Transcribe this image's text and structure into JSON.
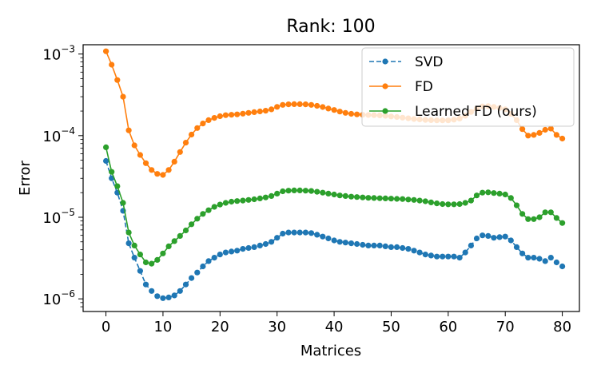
{
  "chart_data": {
    "type": "line",
    "title": "Rank: 100",
    "xlabel": "Matrices",
    "ylabel": "Error",
    "yscale": "log",
    "xlim": [
      -4,
      83
    ],
    "ylim": [
      7e-07,
      0.0013
    ],
    "xticks": [
      0,
      10,
      20,
      30,
      40,
      50,
      60,
      70,
      80
    ],
    "yticks": [
      {
        "value": 1e-06,
        "base": "10",
        "exp": "−6"
      },
      {
        "value": 1e-05,
        "base": "10",
        "exp": "−5"
      },
      {
        "value": 0.0001,
        "base": "10",
        "exp": "−4"
      },
      {
        "value": 0.001,
        "base": "10",
        "exp": "−3"
      }
    ],
    "legend_position": "top-right",
    "x": [
      0,
      1,
      2,
      3,
      4,
      5,
      6,
      7,
      8,
      9,
      10,
      11,
      12,
      13,
      14,
      15,
      16,
      17,
      18,
      19,
      20,
      21,
      22,
      23,
      24,
      25,
      26,
      27,
      28,
      29,
      30,
      31,
      32,
      33,
      34,
      35,
      36,
      37,
      38,
      39,
      40,
      41,
      42,
      43,
      44,
      45,
      46,
      47,
      48,
      49,
      50,
      51,
      52,
      53,
      54,
      55,
      56,
      57,
      58,
      59,
      60,
      61,
      62,
      63,
      64,
      65,
      66,
      67,
      68,
      69,
      70,
      71,
      72,
      73,
      74,
      75,
      76,
      77,
      78,
      79,
      80
    ],
    "series": [
      {
        "name": "SVD",
        "color": "#1f77b4",
        "linestyle": "dashed",
        "values": [
          4.9e-05,
          3e-05,
          2e-05,
          1.2e-05,
          4.8e-06,
          3.2e-06,
          2.2e-06,
          1.5e-06,
          1.25e-06,
          1.08e-06,
          1.02e-06,
          1.04e-06,
          1.1e-06,
          1.25e-06,
          1.5e-06,
          1.8e-06,
          2.1e-06,
          2.5e-06,
          2.9e-06,
          3.2e-06,
          3.5e-06,
          3.7e-06,
          3.8e-06,
          3.9e-06,
          4.1e-06,
          4.2e-06,
          4.3e-06,
          4.5e-06,
          4.7e-06,
          5e-06,
          5.6e-06,
          6.3e-06,
          6.5e-06,
          6.5e-06,
          6.5e-06,
          6.5e-06,
          6.4e-06,
          6.1e-06,
          5.8e-06,
          5.5e-06,
          5.2e-06,
          5e-06,
          4.9e-06,
          4.8e-06,
          4.7e-06,
          4.6e-06,
          4.5e-06,
          4.5e-06,
          4.5e-06,
          4.4e-06,
          4.3e-06,
          4.3e-06,
          4.2e-06,
          4.1e-06,
          3.9e-06,
          3.7e-06,
          3.5e-06,
          3.4e-06,
          3.3e-06,
          3.3e-06,
          3.3e-06,
          3.3e-06,
          3.2e-06,
          3.7e-06,
          4.5e-06,
          5.5e-06,
          6e-06,
          5.9e-06,
          5.6e-06,
          5.7e-06,
          5.8e-06,
          5.2e-06,
          4.3e-06,
          3.6e-06,
          3.2e-06,
          3.2e-06,
          3.1e-06,
          2.9e-06,
          3.2e-06,
          2.8e-06,
          2.5e-06
        ]
      },
      {
        "name": "FD",
        "color": "#ff7f0e",
        "linestyle": "solid",
        "values": [
          0.00108,
          0.00074,
          0.00048,
          0.0003,
          0.000116,
          7.6e-05,
          5.8e-05,
          4.6e-05,
          3.8e-05,
          3.4e-05,
          3.3e-05,
          3.8e-05,
          4.8e-05,
          6.3e-05,
          8.2e-05,
          0.000103,
          0.000124,
          0.000141,
          0.000155,
          0.000165,
          0.000173,
          0.000178,
          0.00018,
          0.000182,
          0.000186,
          0.00019,
          0.000194,
          0.000198,
          0.000202,
          0.00021,
          0.000225,
          0.000238,
          0.000242,
          0.000243,
          0.000243,
          0.000242,
          0.000238,
          0.000232,
          0.000224,
          0.000215,
          0.000206,
          0.000197,
          0.00019,
          0.000185,
          0.000182,
          0.00018,
          0.000179,
          0.000178,
          0.000177,
          0.000175,
          0.000172,
          0.000169,
          0.000166,
          0.000163,
          0.00016,
          0.000158,
          0.000156,
          0.000155,
          0.000154,
          0.000154,
          0.000154,
          0.000157,
          0.000162,
          0.000175,
          0.000195,
          0.000215,
          0.000228,
          0.00023,
          0.000225,
          0.000218,
          0.00021,
          0.000185,
          0.000155,
          0.00012,
          0.0001,
          0.000102,
          0.000108,
          0.000118,
          0.000122,
          0.000102,
          9.2e-05
        ]
      },
      {
        "name": "Learned FD (ours)",
        "color": "#2ca02c",
        "linestyle": "solid",
        "values": [
          7.2e-05,
          3.6e-05,
          2.4e-05,
          1.5e-05,
          6.5e-06,
          4.5e-06,
          3.5e-06,
          2.8e-06,
          2.7e-06,
          3e-06,
          3.6e-06,
          4.4e-06,
          5.1e-06,
          5.9e-06,
          6.9e-06,
          8.2e-06,
          9.6e-06,
          1.1e-05,
          1.22e-05,
          1.34e-05,
          1.43e-05,
          1.5e-05,
          1.55e-05,
          1.58e-05,
          1.6e-05,
          1.63e-05,
          1.66e-05,
          1.7e-05,
          1.75e-05,
          1.82e-05,
          1.95e-05,
          2.08e-05,
          2.12e-05,
          2.13e-05,
          2.13e-05,
          2.12e-05,
          2.1e-05,
          2.05e-05,
          2e-05,
          1.95e-05,
          1.9e-05,
          1.85e-05,
          1.82e-05,
          1.79e-05,
          1.77e-05,
          1.75e-05,
          1.73e-05,
          1.72e-05,
          1.71e-05,
          1.7e-05,
          1.69e-05,
          1.68e-05,
          1.67e-05,
          1.65e-05,
          1.63e-05,
          1.6e-05,
          1.57e-05,
          1.52e-05,
          1.48e-05,
          1.45e-05,
          1.44e-05,
          1.44e-05,
          1.45e-05,
          1.5e-05,
          1.6e-05,
          1.85e-05,
          2e-05,
          2.02e-05,
          1.98e-05,
          1.95e-05,
          1.9e-05,
          1.72e-05,
          1.4e-05,
          1.1e-05,
          9.5e-06,
          9.5e-06,
          1e-05,
          1.15e-05,
          1.15e-05,
          9.8e-06,
          8.5e-06
        ]
      }
    ]
  }
}
